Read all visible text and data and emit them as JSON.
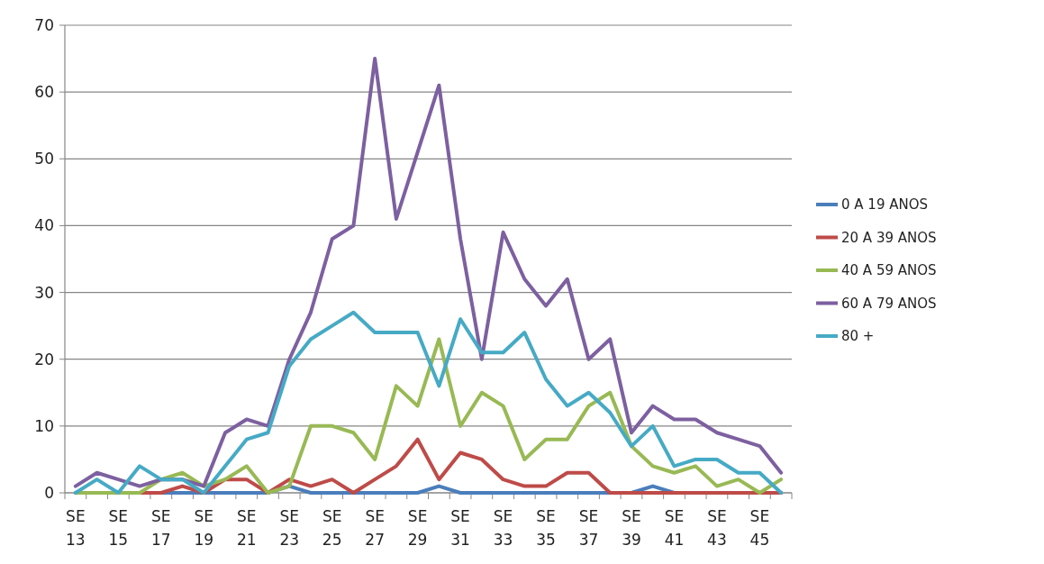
{
  "chart_data": {
    "type": "line",
    "categories": [
      "SE\n13",
      null,
      "SE\n15",
      null,
      "SE\n17",
      null,
      "SE\n19",
      null,
      "SE\n21",
      null,
      "SE\n23",
      null,
      "SE\n25",
      null,
      "SE\n27",
      null,
      "SE\n29",
      null,
      "SE\n31",
      null,
      "SE\n33",
      null,
      "SE\n35",
      null,
      "SE\n37",
      null,
      "SE\n39",
      null,
      "SE\n41",
      null,
      "SE\n43",
      null,
      "SE\n45",
      null
    ],
    "series": [
      {
        "name": "0 A 19 ANOS",
        "color": "#4a7ebb",
        "values": [
          0,
          0,
          0,
          0,
          0,
          0,
          0,
          0,
          0,
          0,
          1,
          0,
          0,
          0,
          0,
          0,
          0,
          1,
          0,
          0,
          0,
          0,
          0,
          0,
          0,
          0,
          0,
          1,
          0,
          0,
          0,
          0,
          0,
          0
        ]
      },
      {
        "name": "20 A 39 ANOS",
        "color": "#be4b48",
        "values": [
          null,
          null,
          0,
          0,
          0,
          1,
          0,
          2,
          2,
          0,
          2,
          1,
          2,
          0,
          2,
          4,
          8,
          2,
          6,
          5,
          2,
          1,
          1,
          3,
          3,
          0,
          0,
          0,
          0,
          0,
          0,
          0,
          0,
          0
        ]
      },
      {
        "name": "40 A 59 ANOS",
        "color": "#98b954",
        "values": [
          0,
          0,
          0,
          0,
          2,
          3,
          1,
          2,
          4,
          0,
          1,
          10,
          10,
          9,
          5,
          16,
          13,
          23,
          10,
          15,
          13,
          5,
          8,
          8,
          13,
          15,
          7,
          4,
          3,
          4,
          1,
          2,
          0,
          2
        ]
      },
      {
        "name": "60 A 79 ANOS",
        "color": "#7d60a0",
        "values": [
          1,
          3,
          2,
          1,
          2,
          2,
          1,
          9,
          11,
          10,
          20,
          27,
          38,
          40,
          65,
          41,
          51,
          61,
          38,
          20,
          39,
          32,
          28,
          32,
          20,
          23,
          9,
          13,
          11,
          11,
          9,
          8,
          7,
          3
        ]
      },
      {
        "name": "80 +",
        "color": "#46aac5",
        "values": [
          0,
          2,
          0,
          4,
          2,
          2,
          0,
          4,
          8,
          9,
          19,
          23,
          25,
          27,
          24,
          24,
          24,
          16,
          26,
          21,
          21,
          24,
          17,
          13,
          15,
          12,
          7,
          10,
          4,
          5,
          5,
          3,
          3,
          0
        ]
      }
    ],
    "ylim": [
      0,
      70
    ],
    "yticks": [
      0,
      10,
      20,
      30,
      40,
      50,
      60,
      70
    ],
    "grid": "y",
    "legend": "right",
    "line_style": "solid",
    "marker": "none"
  }
}
